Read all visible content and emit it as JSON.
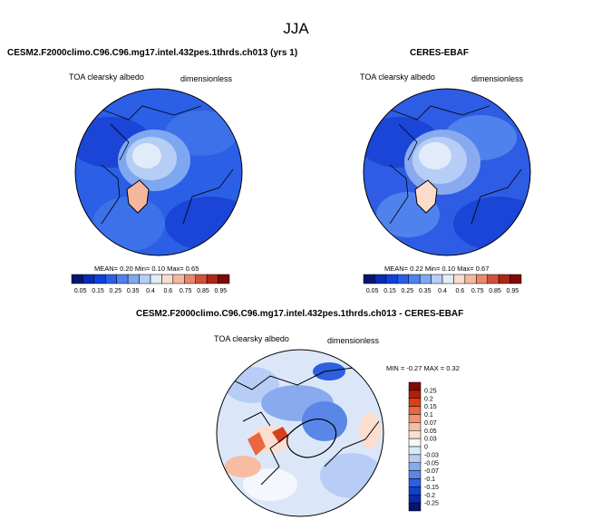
{
  "figure": {
    "title": "JJA"
  },
  "colors": {
    "seq_bar": [
      "#08156e",
      "#0b2bb0",
      "#1041d8",
      "#2a5fe6",
      "#4f82ec",
      "#7ea7f1",
      "#b6cef5",
      "#e1ebfa",
      "#fbdccc",
      "#f4b79d",
      "#e8886a",
      "#d05238",
      "#ad2716",
      "#7c0b06"
    ],
    "diff_bar": [
      "#08156e",
      "#0a2aa8",
      "#1040d0",
      "#2d5fe0",
      "#5a86e8",
      "#89aaef",
      "#b7cdf5",
      "#dbe7f9",
      "#f4f7fd",
      "#fcded0",
      "#f8bca3",
      "#f29370",
      "#e8673f",
      "#d5401b",
      "#b11e0b",
      "#7d0c05"
    ],
    "land": "#000000",
    "ocean_model": "#2a5fe6",
    "ocean_obs": "#2f5ce4"
  },
  "panels": [
    {
      "title": "CESM2.F2000climo.C96.C96.mg17.intel.432pes.1thrds.ch013 (yrs 1)",
      "variable": "TOA clearsky albedo",
      "units": "dimensionless",
      "stats": {
        "mean_label": "MEAN=",
        "mean": "0.20",
        "min_label": "Min=",
        "min": "0.10",
        "max_label": "Max=",
        "max": "0.65"
      },
      "colorbar_ticks": [
        "0.05",
        "0.15",
        "0.25",
        "0.35",
        "0.4",
        "0.6",
        "0.75",
        "0.85",
        "0.95"
      ]
    },
    {
      "title": "CERES-EBAF",
      "variable": "TOA clearsky albedo",
      "units": "dimensionless",
      "stats": {
        "mean_label": "MEAN=",
        "mean": "0.22",
        "min_label": "Min=",
        "min": "0.10",
        "max_label": "Max=",
        "max": "0.67"
      },
      "colorbar_ticks": [
        "0.05",
        "0.15",
        "0.25",
        "0.35",
        "0.4",
        "0.6",
        "0.75",
        "0.85",
        "0.95"
      ]
    },
    {
      "title": "CESM2.F2000climo.C96.C96.mg17.intel.432pes.1thrds.ch013 - CERES-EBAF",
      "variable": "TOA clearsky albedo",
      "units": "dimensionless",
      "stats_text": "MIN =  -0.27 MAX =  0.32",
      "colorbar_ticks": [
        "0.25",
        "0.2",
        "0.15",
        "0.1",
        "0.07",
        "0.05",
        "0.03",
        "0",
        "-0.03",
        "-0.05",
        "-0.07",
        "-0.1",
        "-0.15",
        "-0.2",
        "-0.25"
      ]
    }
  ],
  "chart_data": [
    {
      "type": "heatmap",
      "projection": "north polar stereographic",
      "title": "CESM2.F2000climo.C96.C96.mg17.intel.432pes.1thrds.ch013 (yrs 1)",
      "field": "TOA clearsky albedo",
      "units": "dimensionless",
      "mean": 0.2,
      "min": 0.1,
      "max": 0.65,
      "colorbar_ticks": [
        0.05,
        0.15,
        0.25,
        0.35,
        0.4,
        0.6,
        0.75,
        0.85,
        0.95
      ]
    },
    {
      "type": "heatmap",
      "projection": "north polar stereographic",
      "title": "CERES-EBAF",
      "field": "TOA clearsky albedo",
      "units": "dimensionless",
      "mean": 0.22,
      "min": 0.1,
      "max": 0.67,
      "colorbar_ticks": [
        0.05,
        0.15,
        0.25,
        0.35,
        0.4,
        0.6,
        0.75,
        0.85,
        0.95
      ]
    },
    {
      "type": "heatmap",
      "projection": "north polar stereographic",
      "title": "CESM2.F2000climo.C96.C96.mg17.intel.432pes.1thrds.ch013 - CERES-EBAF",
      "field": "TOA clearsky albedo",
      "units": "dimensionless",
      "min": -0.27,
      "max": 0.32,
      "colorbar_ticks": [
        0.25,
        0.2,
        0.15,
        0.1,
        0.07,
        0.05,
        0.03,
        0,
        -0.03,
        -0.05,
        -0.07,
        -0.1,
        -0.15,
        -0.2,
        -0.25
      ]
    }
  ]
}
